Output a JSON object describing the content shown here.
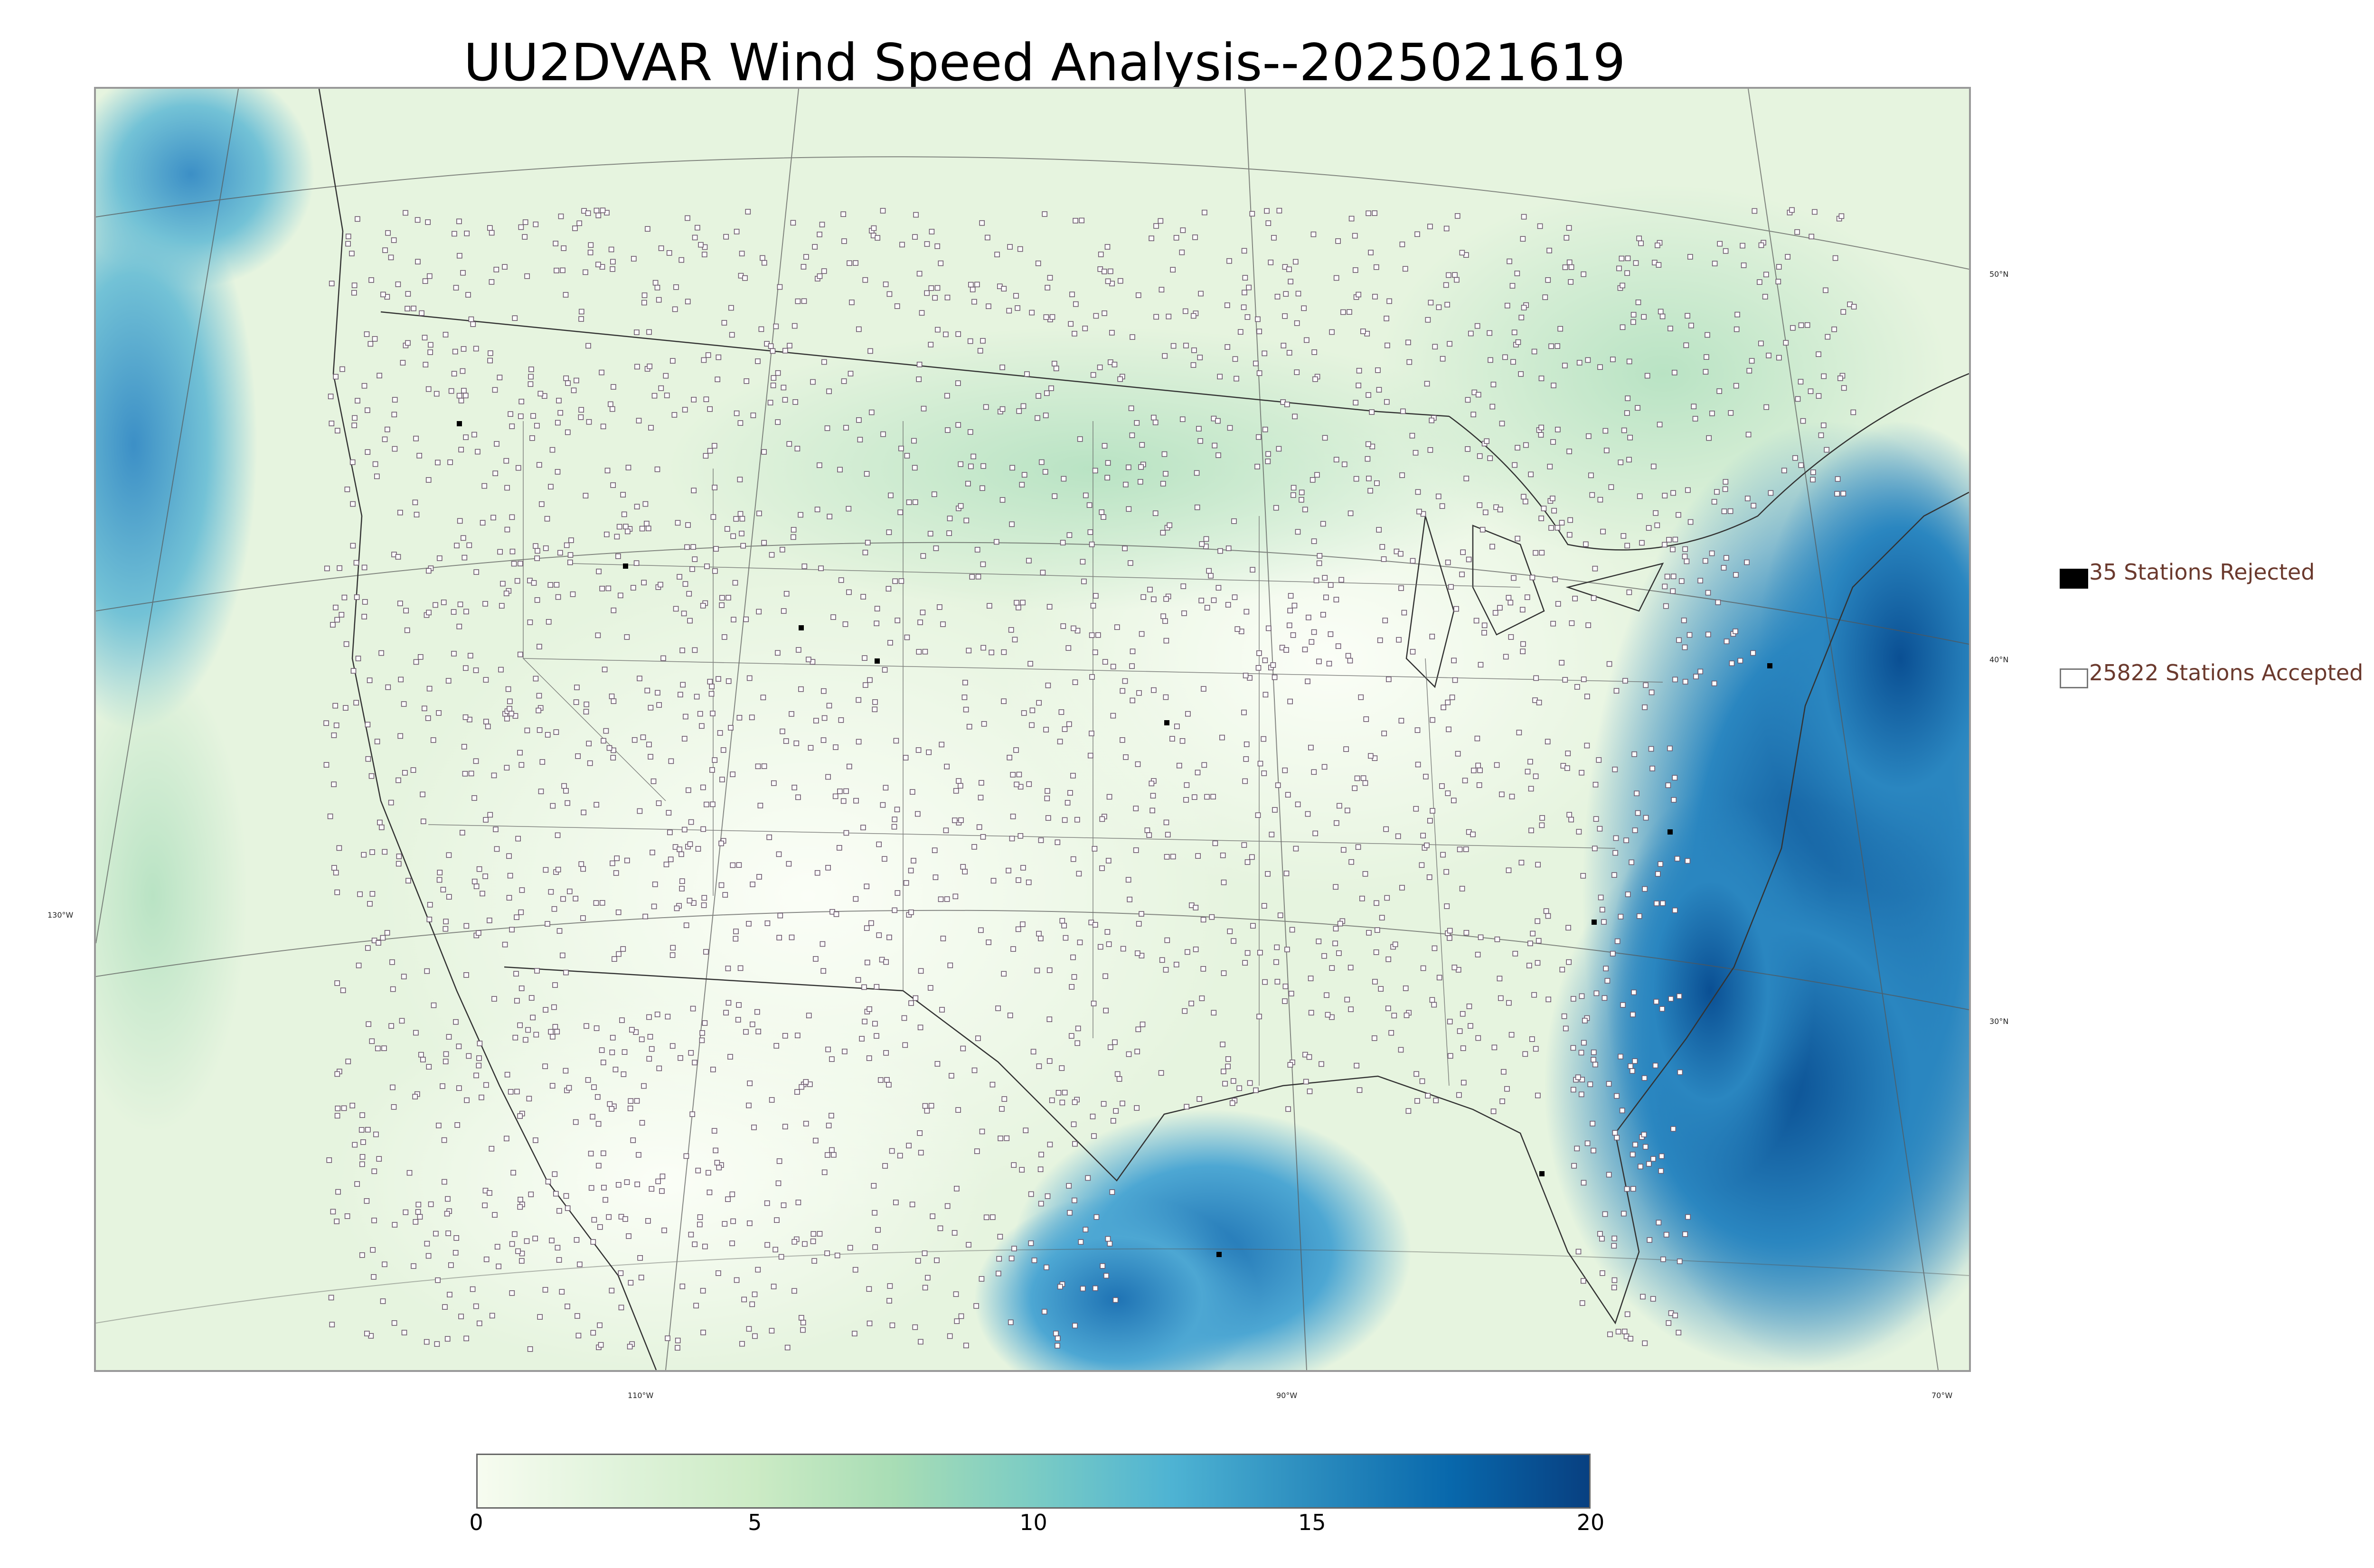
{
  "title": "UU2DVAR Wind Speed Analysis--2025021619",
  "map": {
    "longitude_labels": [
      "130°W",
      "110°W",
      "90°W",
      "70°W"
    ],
    "latitude_labels": [
      "50°N",
      "40°N",
      "30°N"
    ]
  },
  "legend": {
    "rejected": {
      "count": 35,
      "label": "35 Stations Rejected",
      "color": "#000000"
    },
    "accepted": {
      "count": 25822,
      "label": "25822 Stations Accepted",
      "color": "#ffffff"
    }
  },
  "colorbar": {
    "min": 0,
    "max": 20,
    "ticks": [
      "0",
      "5",
      "10",
      "15",
      "20"
    ],
    "colors": [
      "#f7fcf0",
      "#e0f3db",
      "#ccebc5",
      "#a8ddb5",
      "#7bccc4",
      "#4eb3d3",
      "#2b8cbe",
      "#0868ac",
      "#084081"
    ]
  }
}
